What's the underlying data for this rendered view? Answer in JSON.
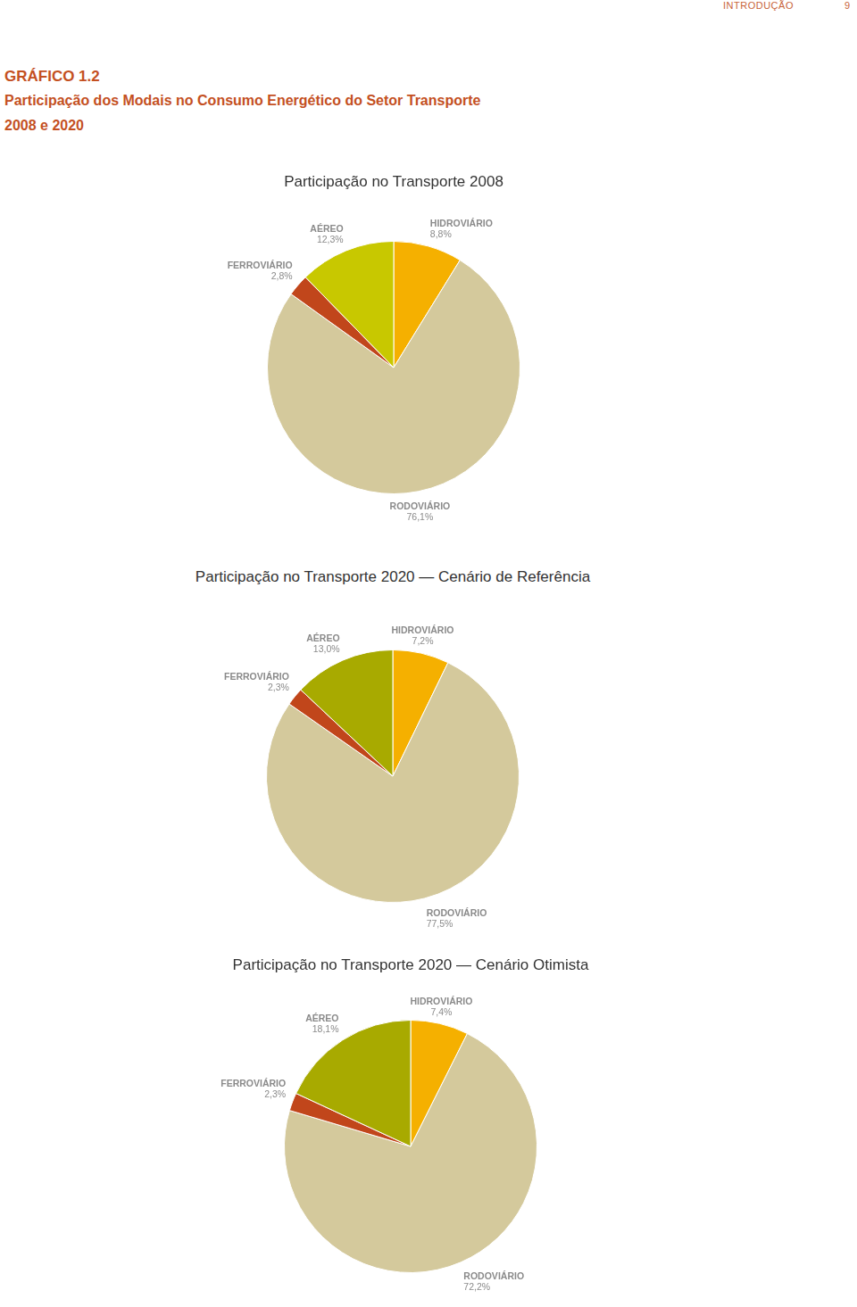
{
  "page": {
    "section": "INTRODUÇÃO",
    "page_number": 9,
    "figure": "GRÁFICO 1.2",
    "title": "Participação dos Modais no Consumo Energético do Setor Transporte",
    "subtitle": "2008 e 2020"
  },
  "chart_data": [
    {
      "type": "pie",
      "title": "Participação no Transporte 2008",
      "categories": [
        "HIDROVIÁRIO",
        "RODOVIÁRIO",
        "FERROVIÁRIO",
        "AÉREO"
      ],
      "values": [
        8.8,
        76.1,
        2.8,
        12.3
      ],
      "value_labels": [
        "8,8%",
        "76,1%",
        "2,8%",
        "12,3%"
      ],
      "colors": [
        "#f5b000",
        "#d4c99c",
        "#c1461b",
        "#c8c800"
      ],
      "data_labels": true
    },
    {
      "type": "pie",
      "title": "Participação no Transporte 2020 — Cenário de Referência",
      "categories": [
        "HIDROVIÁRIO",
        "RODOVIÁRIO",
        "FERROVIÁRIO",
        "AÉREO"
      ],
      "values": [
        7.2,
        77.5,
        2.3,
        13.0
      ],
      "value_labels": [
        "7,2%",
        "77,5%",
        "2,3%",
        "13,0%"
      ],
      "colors": [
        "#f5b000",
        "#d4c99c",
        "#c1461b",
        "#a8aa00"
      ],
      "data_labels": true
    },
    {
      "type": "pie",
      "title": "Participação no Transporte 2020 — Cenário Otimista",
      "categories": [
        "HIDROVIÁRIO",
        "RODOVIÁRIO",
        "FERROVIÁRIO",
        "AÉREO"
      ],
      "values": [
        7.4,
        72.2,
        2.3,
        18.1
      ],
      "value_labels": [
        "7,4%",
        "72,2%",
        "2,3%",
        "18,1%"
      ],
      "colors": [
        "#f5b000",
        "#d4c99c",
        "#c1461b",
        "#a8aa00"
      ],
      "data_labels": true
    }
  ]
}
